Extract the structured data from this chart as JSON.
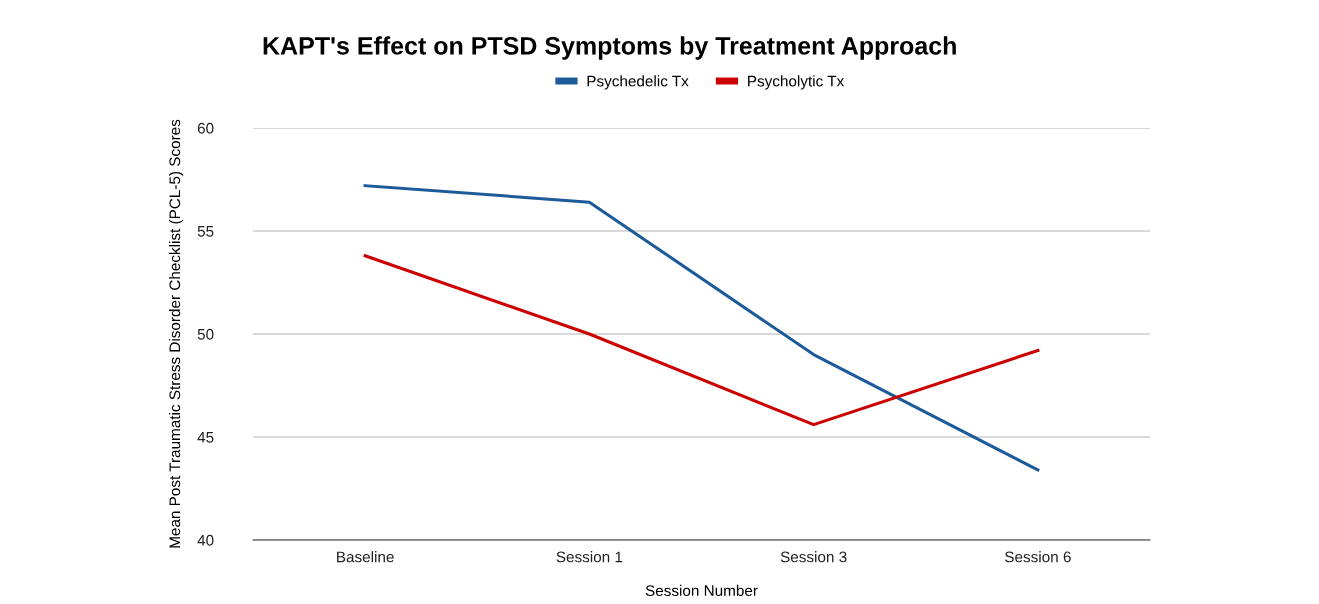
{
  "chart_data": {
    "type": "line",
    "title": "KAPT's Effect on PTSD Symptoms by Treatment Approach",
    "xlabel": "Session Number",
    "ylabel": "Mean Post Traumatic Stress Disorder Checklist (PCL-5) Scores",
    "categories": [
      "Baseline",
      "Session 1",
      "Session 3",
      "Session 6"
    ],
    "series": [
      {
        "name": "Psychedelic Tx",
        "color": "#1c5a99",
        "values": [
          57.2,
          56.4,
          49.0,
          43.4
        ]
      },
      {
        "name": "Psycholytic Tx",
        "color": "#cc0000",
        "values": [
          53.8,
          50.0,
          45.6,
          49.2
        ]
      }
    ],
    "ylim": [
      40,
      60
    ],
    "yticks": [
      40,
      45,
      50,
      55,
      60
    ],
    "grid": "y",
    "legend": "top",
    "marker": "none",
    "line_style": "solid"
  }
}
